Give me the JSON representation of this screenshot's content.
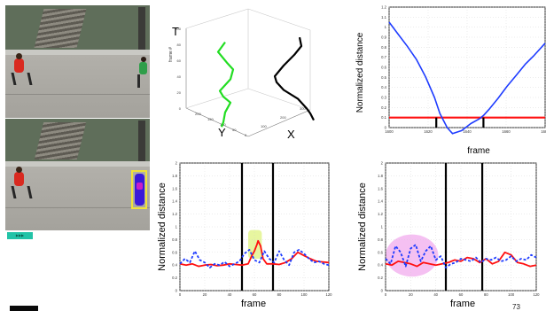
{
  "controls": {
    "play_label": "▶▶▶"
  },
  "page_number": "73",
  "colors": {
    "blue": "#1e3cff",
    "red": "#ff1010",
    "green": "#22dd22",
    "black": "#000000",
    "yellow_highlight": "#e6f59a",
    "pink_highlight": "#f3b5f0"
  },
  "chart_data": [
    {
      "type": "line",
      "title": "",
      "zlabel": "T",
      "ylabel": "Y",
      "xlabel": "X",
      "z_axis_label": "frame #",
      "z_ticks": [
        "0",
        "20",
        "40",
        "60",
        "80",
        "100"
      ],
      "y_ticks": [
        "0",
        "50",
        "100",
        "150",
        "200"
      ],
      "x_ticks": [
        "100",
        "200",
        "300"
      ],
      "series": [
        {
          "color": "green",
          "points": [
            [
              14,
              52
            ],
            [
              6,
              72
            ],
            [
              16,
              94
            ],
            [
              23,
              108
            ],
            [
              20,
              128
            ],
            [
              8,
              152
            ],
            [
              12,
              164
            ],
            [
              20,
              176
            ],
            [
              14,
              196
            ],
            [
              12,
              216
            ],
            [
              10,
              226
            ]
          ]
        },
        {
          "color": "black",
          "points": [
            [
              58,
              42
            ],
            [
              60,
              60
            ],
            [
              52,
              78
            ],
            [
              40,
              100
            ],
            [
              30,
              122
            ],
            [
              32,
              134
            ],
            [
              40,
              150
            ],
            [
              56,
              168
            ],
            [
              66,
              188
            ],
            [
              70,
              198
            ],
            [
              74,
              212
            ]
          ]
        }
      ]
    },
    {
      "type": "line",
      "title": "",
      "xlabel": "frame",
      "ylabel": "Normalized distance",
      "x_range": [
        1600,
        1686
      ],
      "ylim": [
        0,
        1.2
      ],
      "x_ticks": [
        "1600",
        "1620",
        "1640",
        "1660",
        "1680"
      ],
      "y_ticks": [
        "0",
        "0.1",
        "0.2",
        "0.3",
        "0.4",
        "0.5",
        "0.6",
        "0.7",
        "0.8",
        "0.9",
        "1",
        "1.1",
        "1.2"
      ],
      "threshold": 0.1,
      "vlines": [
        1626,
        1652
      ],
      "series": [
        {
          "color": "blue",
          "x": [
            1600,
            1605,
            1610,
            1615,
            1620,
            1625,
            1628,
            1632,
            1635,
            1640,
            1645,
            1650,
            1652,
            1655,
            1660,
            1665,
            1670,
            1675,
            1680,
            1686
          ],
          "values": [
            1.05,
            0.93,
            0.81,
            0.68,
            0.51,
            0.3,
            0.14,
            0.0,
            -0.06,
            -0.03,
            0.04,
            0.09,
            0.12,
            0.18,
            0.29,
            0.41,
            0.52,
            0.63,
            0.72,
            0.84
          ]
        }
      ]
    },
    {
      "type": "line",
      "title": "",
      "xlabel": "frame",
      "ylabel": "Normalized distance",
      "x_range": [
        0,
        120
      ],
      "ylim": [
        0,
        2
      ],
      "x_ticks": [
        "0",
        "20",
        "40",
        "60",
        "80",
        "100",
        "120"
      ],
      "y_ticks": [
        "0",
        "0.2",
        "0.4",
        "0.6",
        "0.8",
        "1",
        "1.2",
        "1.4",
        "1.6",
        "1.8",
        "2"
      ],
      "vlines": [
        50,
        75
      ],
      "highlight": {
        "color": "yellow",
        "x": [
          55,
          66
        ],
        "y": [
          0.5,
          0.95
        ]
      },
      "series": [
        {
          "color": "red",
          "style": "solid",
          "x": [
            0,
            5,
            10,
            15,
            20,
            25,
            30,
            35,
            40,
            45,
            50,
            55,
            58,
            60,
            62,
            63,
            65,
            67,
            70,
            75,
            80,
            85,
            90,
            95,
            100,
            105,
            110,
            115,
            120
          ],
          "values": [
            0.42,
            0.4,
            0.42,
            0.38,
            0.4,
            0.41,
            0.39,
            0.4,
            0.42,
            0.41,
            0.4,
            0.42,
            0.55,
            0.62,
            0.72,
            0.78,
            0.7,
            0.5,
            0.42,
            0.42,
            0.41,
            0.44,
            0.5,
            0.6,
            0.55,
            0.5,
            0.46,
            0.45,
            0.44
          ]
        },
        {
          "color": "blue",
          "style": "dashed",
          "x": [
            0,
            4,
            8,
            12,
            16,
            20,
            24,
            28,
            32,
            36,
            40,
            44,
            48,
            52,
            56,
            60,
            64,
            68,
            72,
            76,
            80,
            84,
            88,
            92,
            96,
            100,
            104,
            108,
            112,
            116,
            120
          ],
          "values": [
            0.42,
            0.5,
            0.44,
            0.62,
            0.48,
            0.44,
            0.36,
            0.42,
            0.4,
            0.45,
            0.38,
            0.42,
            0.46,
            0.58,
            0.64,
            0.48,
            0.44,
            0.62,
            0.5,
            0.44,
            0.62,
            0.48,
            0.4,
            0.6,
            0.64,
            0.58,
            0.5,
            0.44,
            0.46,
            0.42,
            0.4
          ]
        }
      ]
    },
    {
      "type": "line",
      "title": "",
      "xlabel": "frame",
      "ylabel": "Normalized distance",
      "x_range": [
        0,
        120
      ],
      "ylim": [
        0,
        2
      ],
      "x_ticks": [
        "0",
        "20",
        "40",
        "60",
        "80",
        "100",
        "120"
      ],
      "y_ticks": [
        "0",
        "0.2",
        "0.4",
        "0.6",
        "0.8",
        "1",
        "1.2",
        "1.4",
        "1.6",
        "1.8",
        "2"
      ],
      "vlines": [
        48,
        77
      ],
      "highlight": {
        "color": "pink",
        "x": [
          0,
          42
        ],
        "y": [
          0.22,
          0.88
        ]
      },
      "series": [
        {
          "color": "red",
          "style": "solid",
          "x": [
            0,
            5,
            10,
            15,
            20,
            25,
            30,
            35,
            40,
            45,
            50,
            55,
            60,
            65,
            70,
            75,
            80,
            85,
            90,
            95,
            100,
            105,
            110,
            115,
            120
          ],
          "values": [
            0.42,
            0.4,
            0.46,
            0.44,
            0.42,
            0.38,
            0.44,
            0.42,
            0.4,
            0.42,
            0.44,
            0.48,
            0.46,
            0.52,
            0.5,
            0.44,
            0.5,
            0.42,
            0.46,
            0.6,
            0.56,
            0.44,
            0.42,
            0.38,
            0.4
          ]
        },
        {
          "color": "blue",
          "style": "dashed",
          "x": [
            0,
            4,
            8,
            12,
            16,
            20,
            24,
            28,
            32,
            36,
            40,
            44,
            48,
            52,
            56,
            60,
            64,
            68,
            72,
            76,
            80,
            84,
            88,
            92,
            96,
            100,
            104,
            108,
            112,
            116,
            120
          ],
          "values": [
            0.5,
            0.42,
            0.7,
            0.6,
            0.38,
            0.66,
            0.72,
            0.46,
            0.62,
            0.7,
            0.48,
            0.54,
            0.36,
            0.42,
            0.44,
            0.5,
            0.48,
            0.46,
            0.52,
            0.44,
            0.5,
            0.48,
            0.52,
            0.46,
            0.48,
            0.54,
            0.46,
            0.5,
            0.48,
            0.56,
            0.52
          ]
        }
      ]
    }
  ]
}
